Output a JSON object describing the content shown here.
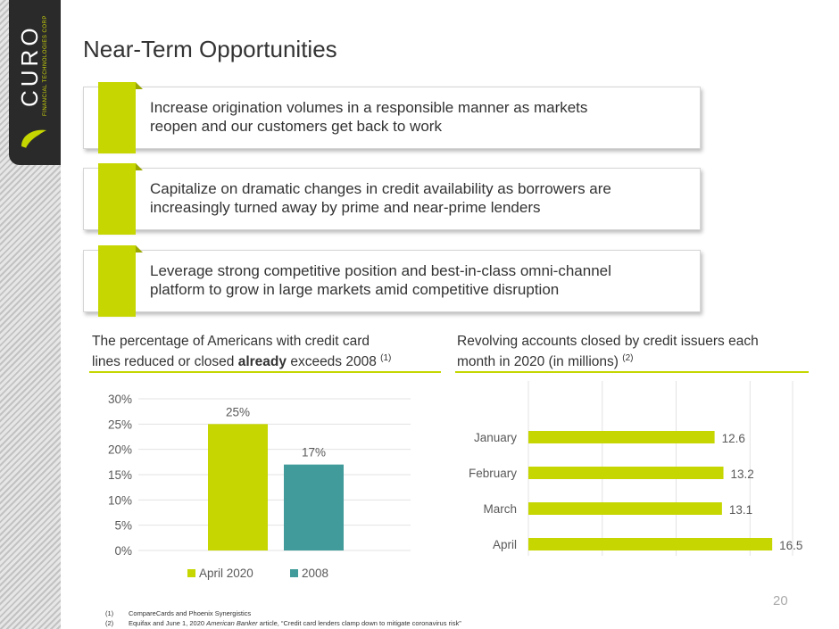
{
  "logo": {
    "name": "CURO",
    "subtitle": "FINANCIAL TECHNOLOGIES CORP"
  },
  "title": "Near-Term Opportunities",
  "cards": [
    {
      "line1": "Increase origination volumes in a responsible manner as markets",
      "line2": "reopen and our customers get back to work"
    },
    {
      "line1": "Capitalize on dramatic changes in credit availability as borrowers are",
      "line2": "increasingly turned away by prime and near-prime lenders"
    },
    {
      "line1": "Leverage strong competitive position and best-in-class omni-channel",
      "line2": "platform to grow in large markets amid competitive disruption"
    }
  ],
  "left_heading": {
    "line1": "The percentage of Americans with credit card",
    "line2_pre": "lines reduced or closed ",
    "line2_bold": "already",
    "line2_post": " exceeds 2008 ",
    "sup": "(1)"
  },
  "right_heading": {
    "line1": "Revolving accounts closed by credit issuers each",
    "line2": "month in 2020 (in millions) ",
    "sup": "(2)"
  },
  "colors": {
    "accent": "#c5d600",
    "teal": "#409b9a",
    "dark": "#2a2a2a"
  },
  "chart_data": [
    {
      "type": "bar",
      "title": "The percentage of Americans with credit card lines reduced or closed already exceeds 2008",
      "series": [
        {
          "name": "April 2020",
          "values": [
            25
          ],
          "color": "#c5d600",
          "label": "25%"
        },
        {
          "name": "2008",
          "values": [
            17
          ],
          "color": "#409b9a",
          "label": "17%"
        }
      ],
      "ylim": [
        0,
        30
      ],
      "yticks": [
        "0%",
        "5%",
        "10%",
        "15%",
        "20%",
        "25%",
        "30%"
      ],
      "ytick_values": [
        0,
        5,
        10,
        15,
        20,
        25,
        30
      ],
      "legend": "bottom"
    },
    {
      "type": "bar",
      "orientation": "horizontal",
      "title": "Revolving accounts closed by credit issuers each month in 2020 (in millions)",
      "categories": [
        "January",
        "February",
        "March",
        "April"
      ],
      "values": [
        12.6,
        13.2,
        13.1,
        16.5
      ],
      "labels": [
        "12.6",
        "13.2",
        "13.1",
        "16.5"
      ],
      "xlim": [
        0,
        18
      ],
      "gridlines": [
        0,
        5,
        10,
        15
      ],
      "color": "#c5d600"
    }
  ],
  "page_number": "20",
  "footnotes": [
    {
      "num": "(1)",
      "text": "CompareCards and Phoenix Synergistics"
    },
    {
      "num": "(2)",
      "text_pre": "Equifax and June 1, 2020 ",
      "text_italic": "American Banker",
      "text_post": " article, “Credit card lenders clamp down to mitigate coronavirus risk”"
    }
  ]
}
